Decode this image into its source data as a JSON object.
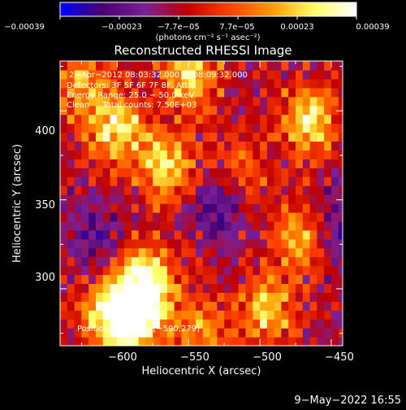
{
  "chart_data": {
    "type": "heatmap",
    "title": "Reconstructed RHESSI Image",
    "xlabel": "Heliocentric X (arcsec)",
    "ylabel": "Heliocentric Y (arcsec)",
    "xlim": [
      -640,
      -442
    ],
    "ylim": [
      268,
      428
    ],
    "xticks": [
      -600,
      -550,
      -500,
      -450
    ],
    "xticklabels": [
      "−600",
      "−550",
      "−500",
      "−450"
    ],
    "yticks": [
      300,
      350,
      400
    ],
    "yticklabels": [
      "300",
      "350",
      "400"
    ],
    "colorbar": {
      "range": [
        -0.00039,
        0.00039
      ],
      "ticklabels": [
        "−0.00039",
        "−0.00023",
        "−7.7e−05",
        "7.7e−05",
        "0.00023",
        "0.00039"
      ],
      "label": "(photons cm⁻² s⁻¹ asec⁻²)",
      "colors": [
        "#0000ff",
        "#4a0070",
        "#7a2098",
        "#c00000",
        "#ff4000",
        "#ff9900",
        "#ffff66",
        "#ffffff"
      ]
    },
    "annotations": [
      "2−Apr−2012 08:03:32.000 to 08:09:32.000",
      "Detectors: 3F 5F 6F 7F 8F, Att 0",
      "Energy Range: 25.0 − 50.0 keV",
      "Clean     Total counts: 7.50E+03"
    ],
    "peak_text": "Position of Peak = [−590,279]",
    "peak": [
      -590,
      279
    ],
    "bright_regions_arcsec": [
      {
        "x": -580,
        "y": 305,
        "level": 1.0
      },
      {
        "x": -585,
        "y": 285,
        "level": 0.95
      },
      {
        "x": -605,
        "y": 285,
        "level": 0.9
      },
      {
        "x": -600,
        "y": 390,
        "level": 0.85
      },
      {
        "x": -565,
        "y": 368,
        "level": 0.8
      },
      {
        "x": -465,
        "y": 395,
        "level": 0.85
      },
      {
        "x": -470,
        "y": 330,
        "level": 0.75
      },
      {
        "x": -495,
        "y": 288,
        "level": 0.7
      },
      {
        "x": -548,
        "y": 420,
        "level": 0.8
      },
      {
        "x": -625,
        "y": 415,
        "level": 0.6
      },
      {
        "x": -515,
        "y": 365,
        "level": 0.5
      },
      {
        "x": -540,
        "y": 275,
        "level": 0.55
      }
    ],
    "dim_regions_arcsec": [
      {
        "x": -530,
        "y": 350,
        "level": -0.55
      },
      {
        "x": -615,
        "y": 330,
        "level": -0.35
      },
      {
        "x": -448,
        "y": 335,
        "level": -0.5
      }
    ]
  },
  "footer": {
    "timestamp": "9−May−2022 16:55"
  }
}
